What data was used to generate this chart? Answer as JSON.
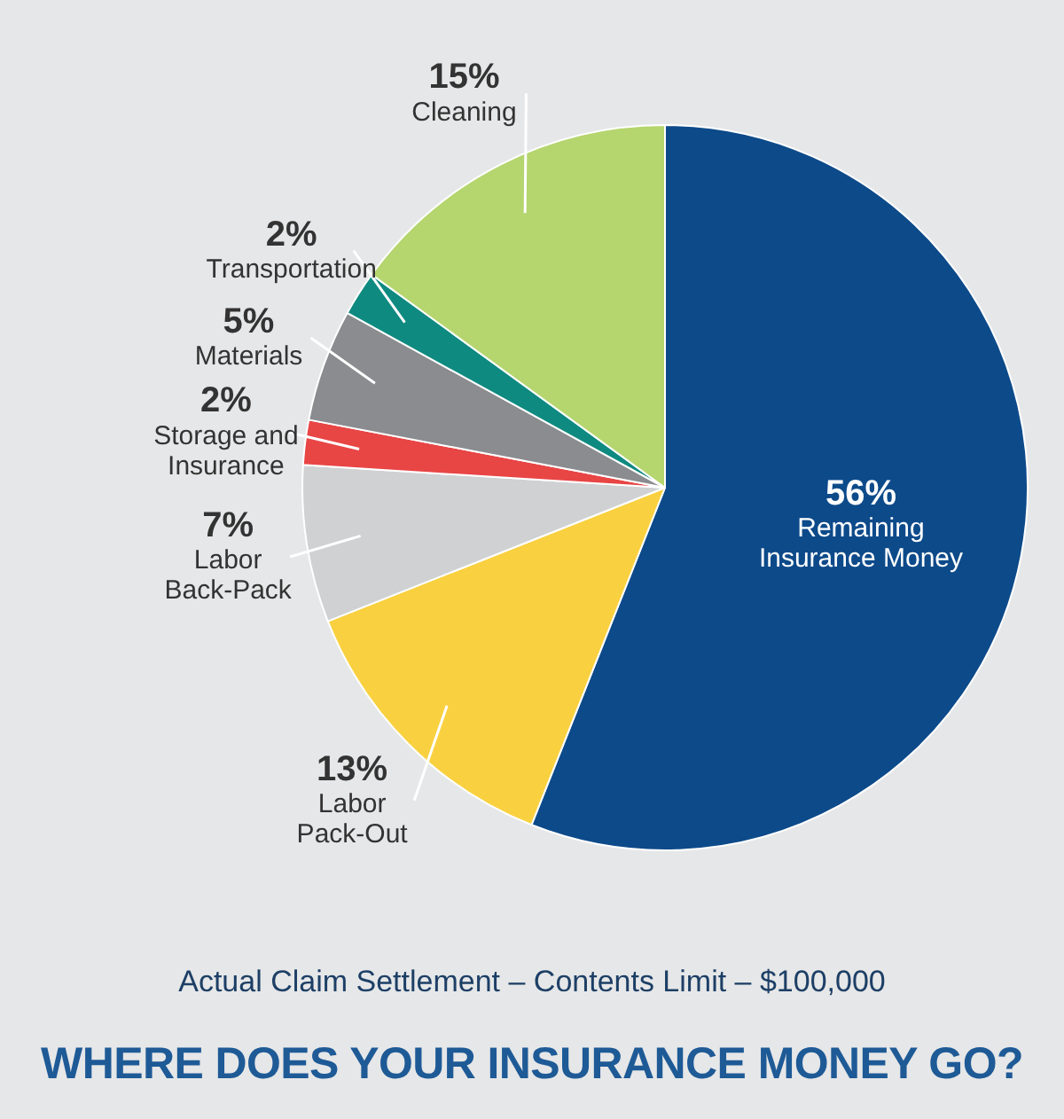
{
  "chart_data": {
    "type": "pie",
    "title": "WHERE DOES YOUR INSURANCE MONEY GO?",
    "subtitle": "Actual Claim Settlement – Contents Limit – $100,000",
    "categories": [
      "Remaining Insurance Money",
      "Labor Pack-Out",
      "Labor Back-Pack",
      "Storage and Insurance",
      "Materials",
      "Transportation",
      "Cleaning"
    ],
    "values": [
      56,
      13,
      7,
      2,
      5,
      2,
      15
    ],
    "value_labels": [
      "56%",
      "13%",
      "7%",
      "2%",
      "5%",
      "2%",
      "15%"
    ],
    "colors": [
      "#0d4a8a",
      "#f9d040",
      "#cfd1d3",
      "#e84545",
      "#8a8c8f",
      "#0f8a80",
      "#b5d56e"
    ],
    "legend": false
  }
}
